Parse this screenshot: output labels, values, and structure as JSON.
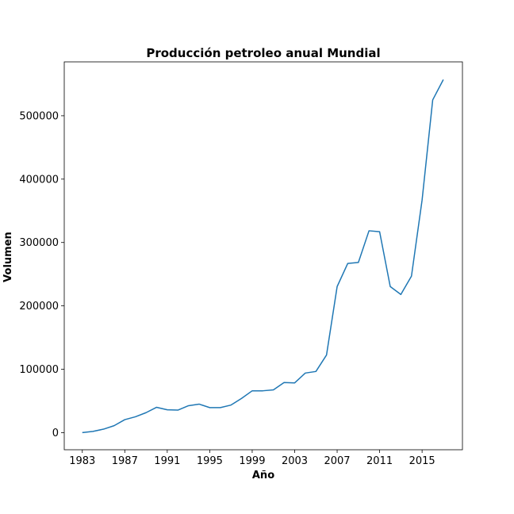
{
  "chart_data": {
    "type": "line",
    "title": "Producción petroleo anual Mundial",
    "xlabel": "Año",
    "ylabel": "Volumen",
    "xlim": [
      1981.3,
      2018.8
    ],
    "ylim": [
      -27000,
      585000
    ],
    "x_ticks": [
      1983,
      1987,
      1991,
      1995,
      1999,
      2003,
      2007,
      2011,
      2015
    ],
    "x_tick_labels": [
      "1983",
      "1987",
      "1991",
      "1995",
      "1999",
      "2003",
      "2007",
      "2011",
      "2015"
    ],
    "y_ticks": [
      0,
      100000,
      200000,
      300000,
      400000,
      500000
    ],
    "y_tick_labels": [
      "0",
      "100000",
      "200000",
      "300000",
      "400000",
      "500000"
    ],
    "grid": false,
    "legend": "none",
    "series": [
      {
        "color": "#1f77b4",
        "x": [
          1983,
          1984,
          1985,
          1986,
          1987,
          1988,
          1989,
          1990,
          1991,
          1992,
          1993,
          1994,
          1995,
          1996,
          1997,
          1998,
          1999,
          2000,
          2001,
          2002,
          2003,
          2004,
          2005,
          2006,
          2007,
          2008,
          2009,
          2010,
          2011,
          2012,
          2013,
          2014,
          2015,
          2016,
          2017
        ],
        "y": [
          0,
          2000,
          5500,
          11000,
          20500,
          25000,
          31500,
          40000,
          36000,
          35500,
          42500,
          45000,
          39500,
          39500,
          43500,
          54000,
          66000,
          66000,
          67500,
          79000,
          78500,
          94000,
          96500,
          122500,
          230500,
          267000,
          268500,
          318500,
          317000,
          230500,
          218000,
          247000,
          367000,
          525000,
          557000
        ]
      }
    ]
  }
}
